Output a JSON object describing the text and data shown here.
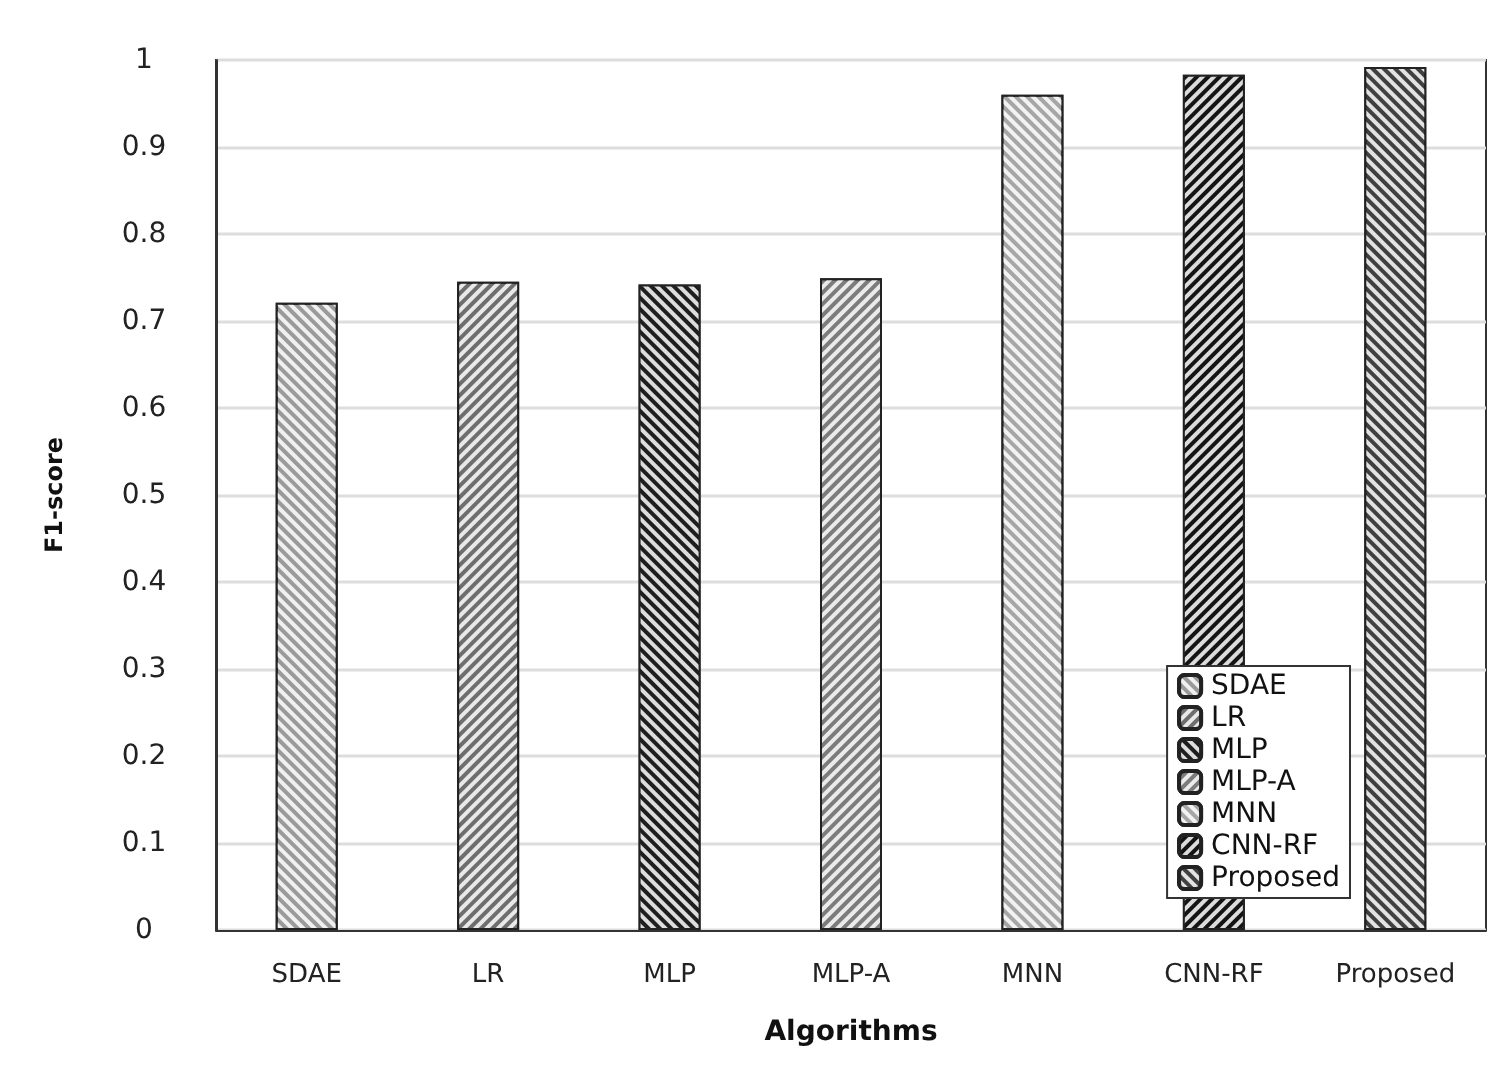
{
  "chart_data": {
    "type": "bar",
    "xlabel": "Algorithms",
    "ylabel": "F1-score",
    "categories": [
      "SDAE",
      "LR",
      "MLP",
      "MLP-A",
      "MNN",
      "CNN-RF",
      "Proposed"
    ],
    "series": [
      {
        "name": "SDAE",
        "color": "#9a9a9a",
        "values": [
          0.721,
          null,
          null,
          null,
          null,
          null,
          null
        ]
      },
      {
        "name": "LR",
        "color": "#6e6e6e",
        "values": [
          null,
          0.745,
          null,
          null,
          null,
          null,
          null
        ]
      },
      {
        "name": "MLP",
        "color": "#1e1e1e",
        "values": [
          null,
          null,
          0.742,
          null,
          null,
          null,
          null
        ]
      },
      {
        "name": "MLP-A",
        "color": "#7c7c7c",
        "values": [
          null,
          null,
          null,
          0.749,
          null,
          null,
          null
        ]
      },
      {
        "name": "MNN",
        "color": "#a6a6a6",
        "values": [
          null,
          null,
          null,
          null,
          0.96,
          null,
          null
        ]
      },
      {
        "name": "CNN-RF",
        "color": "#141414",
        "values": [
          null,
          null,
          null,
          null,
          null,
          0.983,
          null
        ]
      },
      {
        "name": "Proposed",
        "color": "#404040",
        "values": [
          null,
          null,
          null,
          null,
          null,
          null,
          0.992
        ]
      }
    ],
    "ylim": [
      0,
      1
    ],
    "yticks": [
      0,
      0.1,
      0.2,
      0.3,
      0.4,
      0.5,
      0.6,
      0.7,
      0.8,
      0.9,
      1
    ],
    "grid": "y",
    "legend": "bottom right"
  }
}
